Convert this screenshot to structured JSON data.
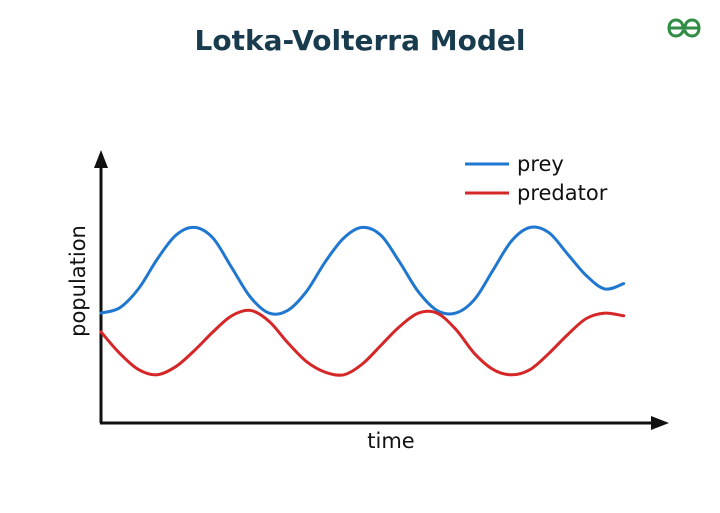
{
  "header": {
    "title": "Lotka-Volterra Model",
    "logo_icon": "geeksforgeeks-logo-icon",
    "logo_color": "#2f8d46"
  },
  "chart_data": {
    "type": "line",
    "title": "Lotka-Volterra Model",
    "xlabel": "time",
    "ylabel": "population",
    "grid": false,
    "legend_placement": "top-right",
    "x": [
      0,
      0.5,
      1,
      1.5,
      2,
      2.5,
      3,
      3.5,
      4,
      4.5,
      5,
      5.5,
      6,
      6.5,
      7,
      7.5,
      8,
      8.5,
      9,
      9.5,
      10,
      10.5,
      11,
      11.5,
      12,
      12.5,
      13,
      13.5,
      14
    ],
    "series": [
      {
        "name": "prey",
        "color": "#1f77d0",
        "values": [
          4.1,
          4.3,
          5.0,
          6.1,
          7.0,
          7.3,
          6.9,
          5.8,
          4.7,
          4.1,
          4.2,
          4.9,
          6.0,
          6.9,
          7.3,
          7.0,
          6.0,
          4.9,
          4.2,
          4.1,
          4.6,
          5.7,
          6.8,
          7.3,
          7.1,
          6.3,
          5.5,
          5.0,
          5.2
        ]
      },
      {
        "name": "predator",
        "color": "#d62728",
        "values": [
          3.4,
          2.6,
          2.0,
          1.8,
          2.1,
          2.7,
          3.4,
          4.0,
          4.2,
          3.8,
          3.0,
          2.3,
          1.9,
          1.8,
          2.2,
          2.9,
          3.6,
          4.1,
          4.1,
          3.5,
          2.6,
          2.0,
          1.8,
          2.0,
          2.6,
          3.3,
          3.9,
          4.1,
          4.0
        ]
      }
    ],
    "ylim": [
      0,
      10
    ],
    "xlim": [
      0,
      15
    ]
  }
}
